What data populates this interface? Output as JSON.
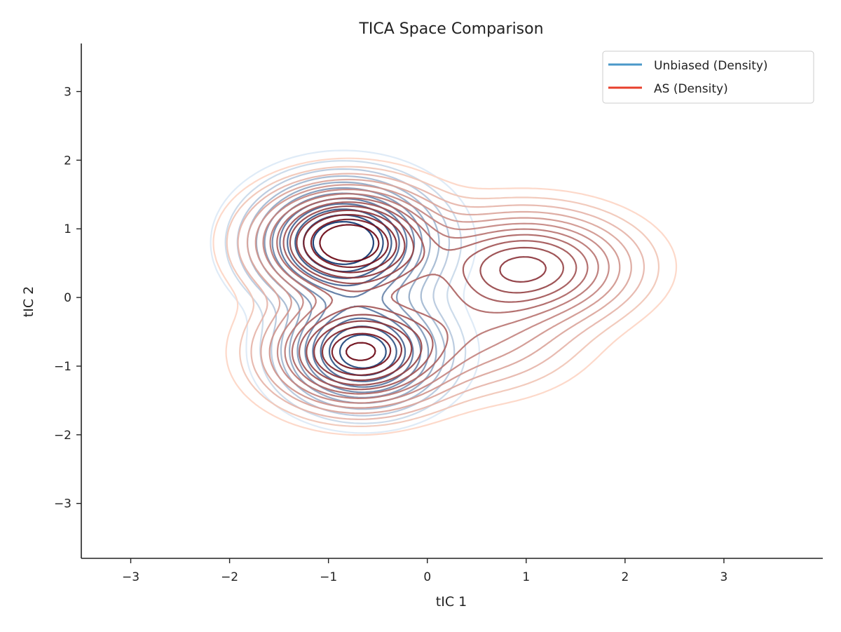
{
  "chart_data": {
    "type": "contour",
    "title": "TICA Space Comparison",
    "xlabel": "tIC 1",
    "ylabel": "tIC 2",
    "xlim": [
      -3.5,
      4.0
    ],
    "ylim": [
      -3.8,
      3.7
    ],
    "xticks": [
      -3,
      -2,
      -1,
      0,
      1,
      2,
      3
    ],
    "yticks": [
      -3,
      -2,
      -1,
      0,
      1,
      2,
      3
    ],
    "xtick_labels": [
      "−3",
      "−2",
      "−1",
      "0",
      "1",
      "2",
      "3"
    ],
    "ytick_labels": [
      "−3",
      "−2",
      "−1",
      "0",
      "1",
      "2",
      "3"
    ],
    "grid": false,
    "legend_position": "top-right",
    "series": [
      {
        "name": "Unbiased (Density)",
        "color": "#4a98c9",
        "colormap": "Blues",
        "kde_modes": [
          {
            "x": -0.85,
            "y": 0.8,
            "sx": 0.5,
            "sy": 0.5,
            "weight": 0.6
          },
          {
            "x": -0.65,
            "y": -0.8,
            "sx": 0.45,
            "sy": 0.45,
            "weight": 0.4
          }
        ],
        "levels": 12
      },
      {
        "name": "AS (Density)",
        "color": "#e8402c",
        "colormap": "Reds",
        "kde_modes": [
          {
            "x": -0.8,
            "y": 0.8,
            "sx": 0.5,
            "sy": 0.45,
            "weight": 0.35
          },
          {
            "x": -0.7,
            "y": -0.8,
            "sx": 0.5,
            "sy": 0.45,
            "weight": 0.3
          },
          {
            "x": 1.0,
            "y": 0.45,
            "sx": 0.6,
            "sy": 0.45,
            "weight": 0.25
          },
          {
            "x": 0.5,
            "y": -0.5,
            "sx": 0.6,
            "sy": 0.5,
            "weight": 0.1
          }
        ],
        "levels": 14
      }
    ]
  }
}
